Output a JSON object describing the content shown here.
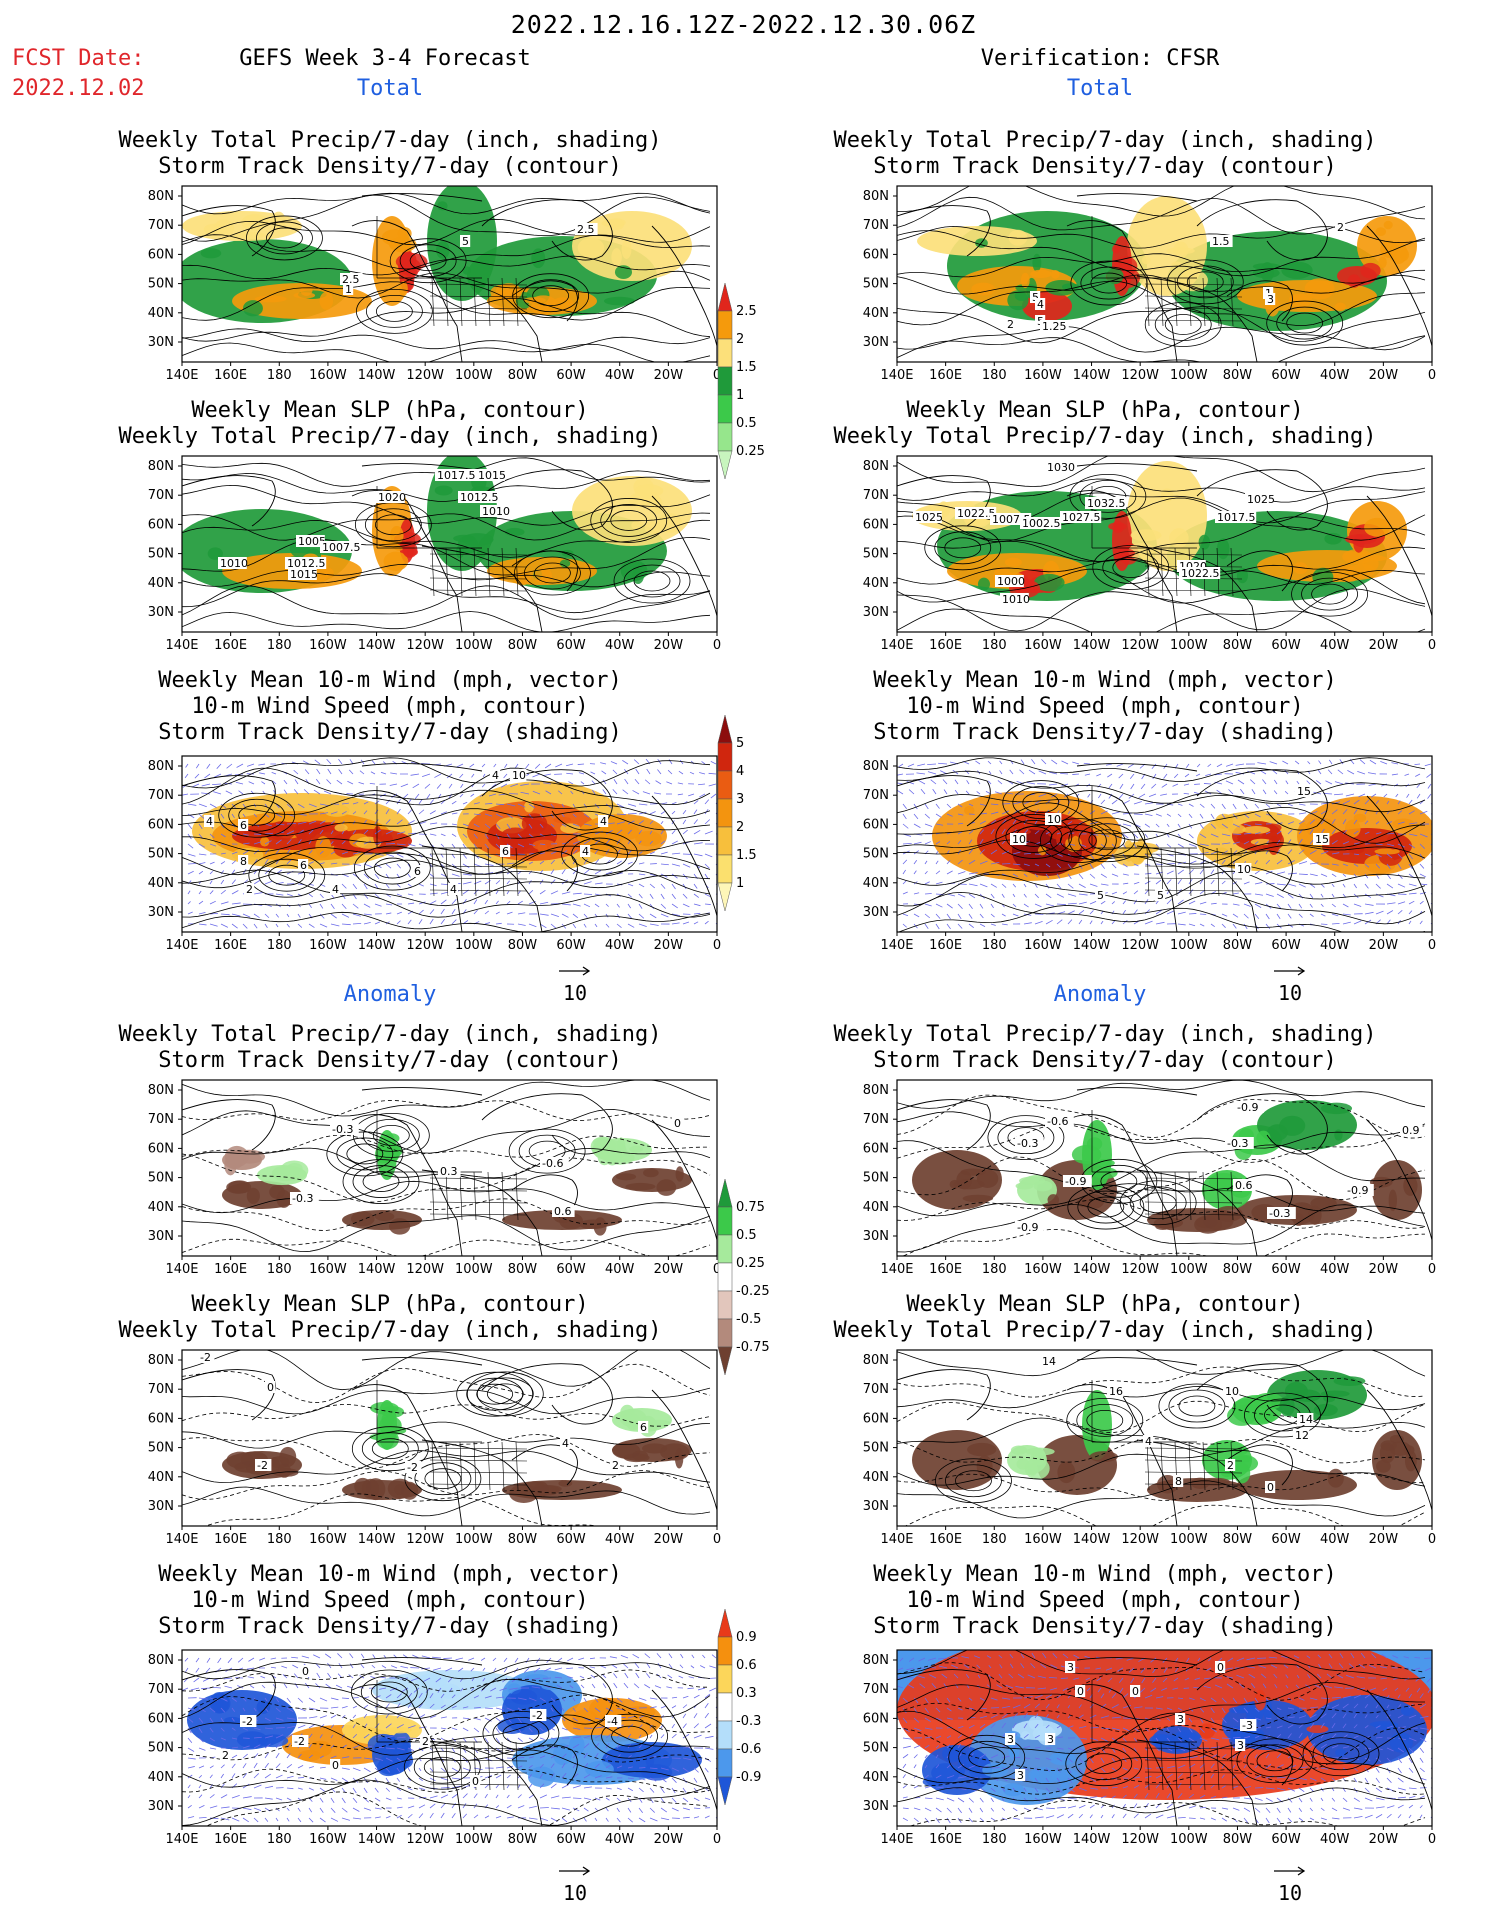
{
  "page": {
    "title": "2022.12.16.12Z-2022.12.30.06Z",
    "fcst_label": "FCST Date:",
    "fcst_date": "2022.12.02",
    "left_header": "GEFS Week 3-4 Forecast",
    "right_header": "Verification: CFSR",
    "section_total": "Total",
    "section_anomaly": "Anomaly"
  },
  "axes": {
    "lat_labels": [
      "80N",
      "70N",
      "60N",
      "50N",
      "40N",
      "30N"
    ],
    "lon_labels": [
      "140E",
      "160E",
      "180",
      "160W",
      "140W",
      "120W",
      "100W",
      "80W",
      "60W",
      "40W",
      "20W",
      "0"
    ]
  },
  "titles": {
    "precip_track": [
      "Weekly Total Precip/7-day (inch, shading)",
      "Storm Track Density/7-day (contour)"
    ],
    "slp_precip": [
      "Weekly Mean SLP (hPa, contour)",
      "Weekly Total Precip/7-day (inch, shading)"
    ],
    "wind_track": [
      "Weekly Mean 10-m Wind (mph, vector)",
      "10-m Wind Speed (mph, contour)",
      "Storm Track Density/7-day (shading)"
    ]
  },
  "vector_ref": "10",
  "colorbars": {
    "precip_total": {
      "labels": [
        "2.5",
        "2",
        "1.5",
        "1",
        "0.5",
        "0.25"
      ],
      "colors": [
        "#e0261c",
        "#f59a0c",
        "#fce07a",
        "#1f9a3a",
        "#3cc94a",
        "#96e68c",
        "#c8f5be"
      ]
    },
    "track_total": {
      "labels": [
        "5",
        "4",
        "3",
        "2",
        "1.5",
        "1"
      ],
      "colors": [
        "#8c0d0d",
        "#d0260e",
        "#ea5c12",
        "#f3940f",
        "#f7bf3c",
        "#fbe06e",
        "#fdf6b8"
      ]
    },
    "precip_anom": {
      "labels": [
        "0.75",
        "0.5",
        "0.25",
        "-0.25",
        "-0.5",
        "-0.75"
      ],
      "colors": [
        "#1f9a3a",
        "#3cc94a",
        "#a6ea9c",
        "#ffffff",
        "#e2c6bc",
        "#b38a7c",
        "#6e4030"
      ]
    },
    "track_anom": {
      "labels": [
        "0.9",
        "0.6",
        "0.3",
        "-0.3",
        "-0.6",
        "-0.9"
      ],
      "colors": [
        "#e83a1a",
        "#f5900e",
        "#fcd65a",
        "#ffffff",
        "#b4defa",
        "#4c98ec",
        "#1e56d8"
      ]
    }
  },
  "contour_labels": {
    "fc_total_precip": [
      "2.5",
      "5",
      "2.5",
      "1"
    ],
    "ob_total_precip": [
      "2",
      "1.5",
      "5",
      "4",
      "2",
      "5",
      "1.25",
      "1",
      "3"
    ],
    "fc_total_slp": [
      "1017.5",
      "1015",
      "1020",
      "1012.5",
      "1010",
      "1005",
      "1007.5",
      "1010",
      "1012.5",
      "1015"
    ],
    "ob_total_slp": [
      "1030",
      "1032.5",
      "1025",
      "1022.5",
      "1007.5",
      "1002.5",
      "1027.5",
      "1017.5",
      "1025",
      "1000",
      "1010",
      "1020",
      "1022.5"
    ],
    "fc_total_wind": [
      "4",
      "6",
      "8",
      "6",
      "2",
      "4",
      "6",
      "10",
      "4",
      "4",
      "6",
      "4",
      "4"
    ],
    "ob_total_wind": [
      "10",
      "10",
      "15",
      "15",
      "10",
      "5",
      "5"
    ],
    "fc_anom_precip": [
      "-0.3",
      "0.3",
      "-0.3",
      "-0.6",
      "0.6",
      "0"
    ],
    "ob_anom_precip": [
      "-0.6",
      "-0.9",
      "-0.3",
      "-0.9",
      "-0.3",
      "0.6",
      "-0.3",
      "0.9",
      "-0.9",
      "-0.9"
    ],
    "fc_anom_slp": [
      "-2",
      "0",
      "-2",
      "-2",
      "6",
      "4",
      "2"
    ],
    "ob_anom_slp": [
      "14",
      "16",
      "10",
      "4",
      "14",
      "12",
      "2",
      "8",
      "0"
    ],
    "fc_anom_wind": [
      "0",
      "-2",
      "-2",
      "2",
      "-4",
      "0",
      "-2",
      "0",
      "2"
    ],
    "ob_anom_wind": [
      "3",
      "0",
      "0",
      "0",
      "3",
      "3",
      "3",
      "-3",
      "3",
      "3"
    ]
  }
}
